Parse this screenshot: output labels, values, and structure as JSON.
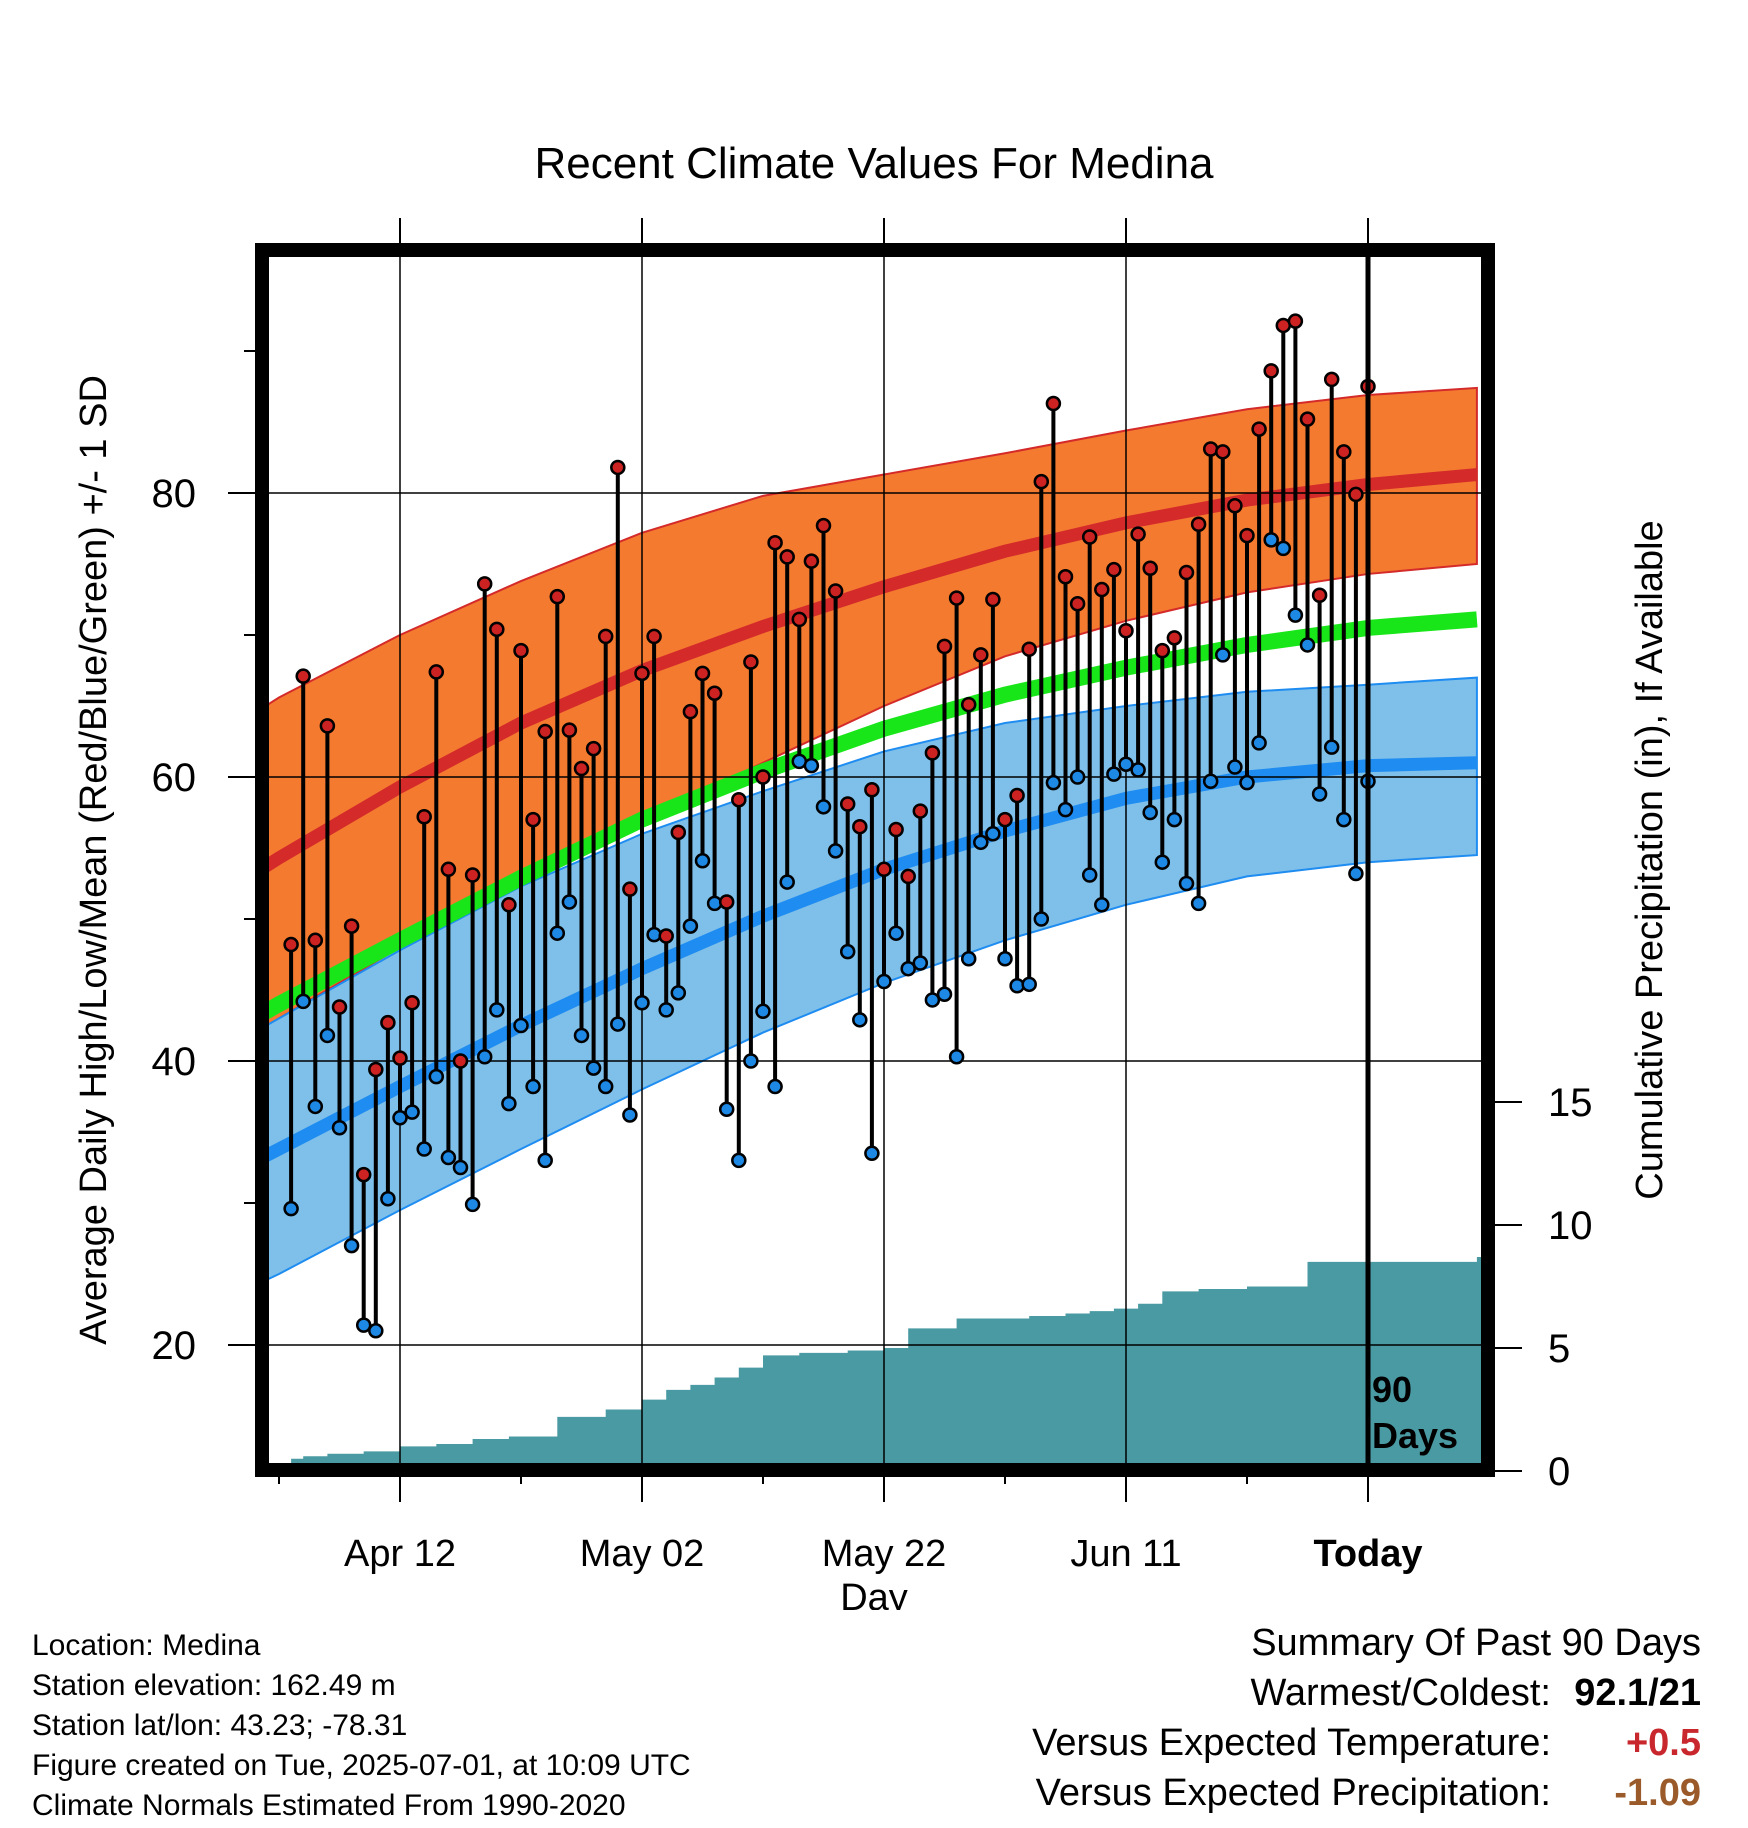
{
  "chart_data": {
    "type": "line",
    "title": "Recent Climate Values For Medina",
    "xlabel": "Day",
    "ylabel": "Average Daily High/Low/Mean (Red/Blue/Green) +/- 1 SD",
    "y2label": "Cumulative Precipitation (in), If Available",
    "x_ticks": [
      "Apr 12",
      "May 02",
      "May 22",
      "Jun 11",
      "Today"
    ],
    "y_ticks": [
      "20",
      "40",
      "60",
      "80"
    ],
    "y2_ticks": [
      "0",
      "5",
      "10",
      "15"
    ],
    "xlim": [
      -10,
      9
    ],
    "ylim": [
      11.5,
      97.5
    ],
    "y2lim": [
      0,
      36.5
    ],
    "annotation": "90 Days",
    "normals": {
      "day": [
        -100,
        -90,
        -80,
        -70,
        -60,
        -50,
        -40,
        -30,
        -20,
        -10,
        0,
        9
      ],
      "high_mean": [
        48.9,
        54.3,
        59.3,
        63.8,
        67.5,
        70.6,
        73.4,
        75.9,
        77.9,
        79.5,
        80.6,
        81.3
      ],
      "high_upper": [
        60.2,
        65.6,
        70.0,
        73.8,
        77.2,
        79.8,
        81.3,
        82.8,
        84.4,
        85.9,
        86.9,
        87.4
      ],
      "high_lower": [
        38.0,
        43.0,
        48.0,
        53.0,
        57.0,
        61.0,
        65.0,
        68.5,
        71.0,
        73.0,
        74.3,
        75.0
      ],
      "mean": [
        39.2,
        44.0,
        48.5,
        52.9,
        57.0,
        60.4,
        63.4,
        65.8,
        67.7,
        69.3,
        70.5,
        71.1
      ],
      "low_mean": [
        29.4,
        33.8,
        38.2,
        42.5,
        46.5,
        50.2,
        53.5,
        56.2,
        58.5,
        60.0,
        60.8,
        61.0
      ],
      "low_upper": [
        38.2,
        43.0,
        47.8,
        52.3,
        56.0,
        59.0,
        61.8,
        63.8,
        65.0,
        66.0,
        66.5,
        67.0
      ],
      "low_lower": [
        21.0,
        25.0,
        29.5,
        33.8,
        38.0,
        42.0,
        45.5,
        48.5,
        51.0,
        53.0,
        54.0,
        54.5
      ]
    },
    "daily": {
      "start_day": -89,
      "high": [
        48.2,
        67.1,
        48.5,
        63.6,
        43.8,
        49.5,
        32.0,
        39.4,
        42.7,
        40.2,
        44.1,
        57.2,
        67.4,
        53.5,
        40.0,
        53.1,
        73.6,
        70.4,
        51.0,
        68.9,
        57.0,
        63.2,
        72.7,
        63.3,
        60.6,
        62.0,
        69.9,
        81.8,
        52.1,
        67.3,
        69.9,
        48.8,
        56.1,
        64.6,
        67.3,
        65.9,
        51.2,
        58.4,
        68.1,
        60.0,
        76.5,
        75.5,
        71.1,
        75.2,
        77.7,
        73.1,
        58.1,
        56.5,
        59.1,
        53.5,
        56.3,
        53.0,
        57.6,
        61.7,
        69.2,
        72.6,
        65.1,
        68.6,
        72.5,
        57.0,
        58.7,
        69.0,
        80.8,
        86.3,
        74.1,
        72.2,
        76.9,
        73.2,
        74.6,
        70.3,
        77.1,
        74.7,
        68.9,
        69.8,
        74.4,
        77.8,
        83.1,
        82.9,
        79.1,
        77.0,
        84.5,
        88.6,
        91.8,
        92.1,
        85.2,
        72.8,
        88.0,
        82.9,
        79.9,
        87.5
      ],
      "low": [
        29.6,
        44.2,
        36.8,
        41.8,
        35.3,
        27.0,
        21.4,
        21.0,
        30.3,
        36.0,
        36.4,
        33.8,
        38.9,
        33.2,
        32.5,
        29.9,
        40.3,
        43.6,
        37.0,
        42.5,
        38.2,
        33.0,
        49.0,
        51.2,
        41.8,
        39.5,
        38.2,
        42.6,
        36.2,
        44.1,
        48.9,
        43.6,
        44.8,
        49.5,
        54.1,
        51.1,
        36.6,
        33.0,
        40.0,
        43.5,
        38.2,
        52.6,
        61.1,
        60.8,
        57.9,
        54.8,
        47.7,
        42.9,
        33.5,
        45.6,
        49.0,
        46.5,
        46.9,
        44.3,
        44.7,
        40.3,
        47.2,
        55.4,
        56.0,
        47.2,
        45.3,
        45.4,
        50.0,
        59.6,
        57.7,
        60.0,
        53.1,
        51.0,
        60.2,
        60.9,
        60.5,
        57.5,
        54.0,
        57.0,
        52.5,
        51.1,
        59.7,
        68.6,
        60.7,
        59.6,
        62.4,
        76.7,
        76.1,
        71.4,
        69.3,
        58.8,
        62.1,
        57.0,
        53.2,
        59.7
      ]
    },
    "precip": {
      "day": [
        -90,
        -89,
        -88,
        -86,
        -83,
        -80,
        -77,
        -74,
        -71,
        -67,
        -63,
        -60,
        -58,
        -56,
        -54,
        -52,
        -50,
        -47,
        -43,
        -40,
        -38,
        -34,
        -33,
        -31,
        -28,
        -25,
        -23,
        -21,
        -19,
        -17,
        -14,
        -12,
        -10,
        -8,
        -6,
        -5,
        -4,
        9
      ],
      "value": [
        0.3,
        0.5,
        0.6,
        0.7,
        0.8,
        1.0,
        1.1,
        1.3,
        1.4,
        2.2,
        2.5,
        2.9,
        3.3,
        3.5,
        3.8,
        4.2,
        4.7,
        4.8,
        4.9,
        5.0,
        5.8,
        6.2,
        6.2,
        6.2,
        6.3,
        6.4,
        6.5,
        6.6,
        6.8,
        7.3,
        7.4,
        7.4,
        7.5,
        7.5,
        7.5,
        8.5,
        8.5,
        8.7
      ]
    }
  },
  "summary": {
    "heading": "Summary Of Past 90 Days",
    "rows": [
      {
        "label": "Warmest/Coldest:",
        "value": "92.1/21",
        "color": "#000000"
      },
      {
        "label": "Versus Expected Temperature:",
        "value": "+0.5",
        "color": "#c8282d"
      },
      {
        "label": "Versus Expected Precipitation:",
        "value": "-1.09",
        "color": "#9a5a2a"
      }
    ]
  },
  "info": {
    "lines": [
      "Location: Medina",
      "Station elevation: 162.49 m",
      "Station lat/lon: 43.23; -78.31",
      "Figure created on Tue, 2025-07-01, at 10:09 UTC",
      "Climate Normals Estimated From 1990-2020"
    ]
  },
  "colors": {
    "high_band": "#f47a30",
    "high_line": "#d42a2a",
    "low_band": "#7fc0ea",
    "low_line": "#1e8cf0",
    "mean_line": "#19e619",
    "precip": "#4a9aa3",
    "high_dot": "#cc2222",
    "low_dot": "#1e88e5"
  }
}
